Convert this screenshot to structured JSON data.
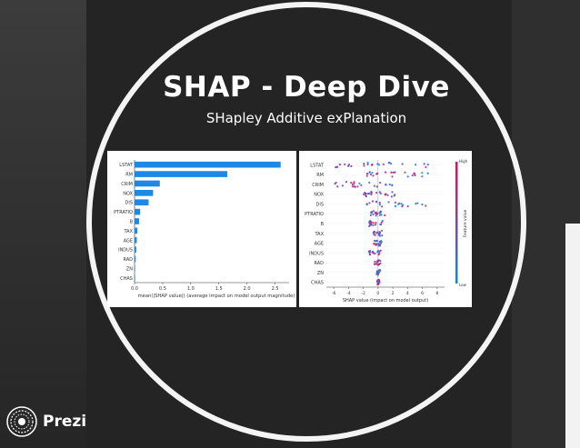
{
  "slide": {
    "title": "SHAP - Deep Dive",
    "subtitle": "SHapley Additive exPlanation"
  },
  "branding": {
    "name": "Prezi"
  },
  "colors": {
    "bar": "#1e88e5",
    "high": "#ff0052",
    "low": "#008bfb"
  },
  "chart_data": [
    {
      "type": "bar",
      "orientation": "horizontal",
      "categories": [
        "LSTAT",
        "RM",
        "CRIM",
        "NOX",
        "DIS",
        "PTRATIO",
        "B",
        "TAX",
        "AGE",
        "INDUS",
        "RAD",
        "ZN",
        "CHAS"
      ],
      "values": [
        2.6,
        1.65,
        0.45,
        0.33,
        0.25,
        0.1,
        0.08,
        0.05,
        0.04,
        0.03,
        0.02,
        0.01,
        0.005
      ],
      "xlabel": "mean(|SHAP value|) (average impact on model output magnitude)",
      "xticks": [
        "0.0",
        "0.5",
        "1.0",
        "1.5",
        "2.0",
        "2.5"
      ],
      "xlim": [
        0,
        2.75
      ]
    },
    {
      "type": "scatter",
      "categories": [
        "LSTAT",
        "RM",
        "CRIM",
        "NOX",
        "DIS",
        "PTRATIO",
        "B",
        "TAX",
        "AGE",
        "INDUS",
        "RAD",
        "ZN",
        "CHAS"
      ],
      "xlabel": "SHAP value (impact on model output)",
      "xticks": [
        "-6",
        "-4",
        "-2",
        "0",
        "2",
        "4",
        "6",
        "8"
      ],
      "xlim": [
        -7,
        9
      ],
      "colorbar": {
        "label": "Feature value",
        "high": "High",
        "low": "Low"
      },
      "spread": [
        [
          -6,
          7
        ],
        [
          -1.5,
          8
        ],
        [
          -6,
          2
        ],
        [
          -2,
          2.5
        ],
        [
          -1.5,
          6.5
        ],
        [
          -1,
          1
        ],
        [
          -1.2,
          0.6
        ],
        [
          -0.7,
          0.6
        ],
        [
          -0.6,
          0.5
        ],
        [
          -1.2,
          0.4
        ],
        [
          -0.5,
          0.4
        ],
        [
          -0.2,
          0.3
        ],
        [
          -0.1,
          0.2
        ]
      ]
    }
  ]
}
